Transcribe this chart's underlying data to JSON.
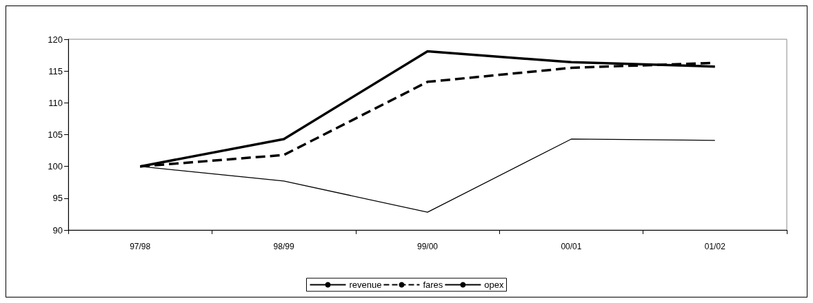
{
  "chart_data": {
    "type": "line",
    "categories": [
      "97/98",
      "98/99",
      "99/00",
      "00/01",
      "01/02"
    ],
    "series": [
      {
        "name": "revenue",
        "color": "#000000",
        "line_style": "solid",
        "values": [
          100,
          104.3,
          118.1,
          116.4,
          115.7
        ]
      },
      {
        "name": "fares",
        "color": "#000000",
        "line_style": "dashed",
        "values": [
          100,
          101.8,
          113.3,
          115.5,
          116.3
        ]
      },
      {
        "name": "opex",
        "color": "#000000",
        "line_style": "solid",
        "values": [
          100,
          97.7,
          92.8,
          104.3,
          104.1
        ]
      }
    ],
    "ylim": [
      90,
      120
    ],
    "yticks": [
      90,
      95,
      100,
      105,
      110,
      115,
      120
    ],
    "grid": false,
    "legend": "bottom",
    "marker": "none"
  }
}
